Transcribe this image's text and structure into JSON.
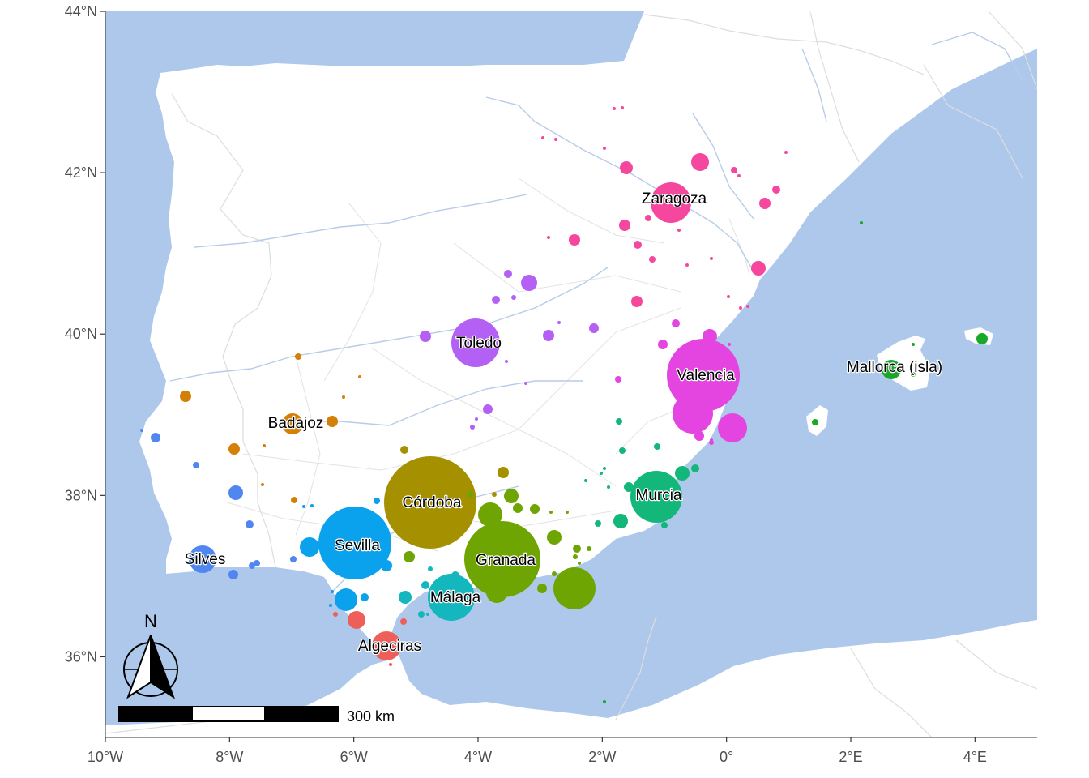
{
  "map": {
    "axes": {
      "x_ticks": [
        "10°W",
        "8°W",
        "6°W",
        "4°W",
        "2°W",
        "0°",
        "2°E",
        "4°E"
      ],
      "y_ticks": [
        "36°N",
        "38°N",
        "40°N",
        "42°N",
        "44°N"
      ],
      "lon_values": [
        -10,
        -8,
        -6,
        -4,
        -2,
        0,
        2,
        4
      ],
      "lat_values": [
        36,
        38,
        40,
        42,
        44
      ],
      "lon_range": [
        -10,
        5
      ],
      "lat_range": [
        35,
        44
      ]
    },
    "colors": {
      "sea": "#aec8ec",
      "land": "#ffffff",
      "border": "#dddddd",
      "river": "#b7cce9",
      "Zaragoza": "#f5479e",
      "Valencia": "#e445e0",
      "Toledo": "#b460f5",
      "Badajoz": "#d47f06",
      "Silves": "#4f86f0",
      "Sevilla": "#0aa2ec",
      "Algeciras": "#ee5f5a",
      "Córdoba": "#a59100",
      "Granada": "#6ea502",
      "Málaga": "#13b7bd",
      "Murcia": "#14b77a",
      "Mallorca (isla)": "#19a828"
    },
    "cities": [
      {
        "name": "Zaragoza",
        "lon": -0.89,
        "lat": 41.65
      },
      {
        "name": "Valencia",
        "lon": -0.38,
        "lat": 39.47
      },
      {
        "name": "Toledo",
        "lon": -4.03,
        "lat": 39.86
      },
      {
        "name": "Mallorca (isla)",
        "lon": 2.65,
        "lat": 39.57
      },
      {
        "name": "Badajoz",
        "lon": -6.97,
        "lat": 38.88
      },
      {
        "name": "Murcia",
        "lon": -1.13,
        "lat": 37.98
      },
      {
        "name": "Córdoba",
        "lon": -4.78,
        "lat": 37.88
      },
      {
        "name": "Sevilla",
        "lon": -5.98,
        "lat": 37.39
      },
      {
        "name": "Silves",
        "lon": -8.44,
        "lat": 37.19
      },
      {
        "name": "Granada",
        "lon": -3.6,
        "lat": 37.18
      },
      {
        "name": "Málaga",
        "lon": -4.42,
        "lat": 36.72
      },
      {
        "name": "Algeciras",
        "lon": -5.45,
        "lat": 36.13
      }
    ],
    "scale_bar": {
      "label": "300 km"
    },
    "north_arrow": {
      "label": "N"
    }
  }
}
